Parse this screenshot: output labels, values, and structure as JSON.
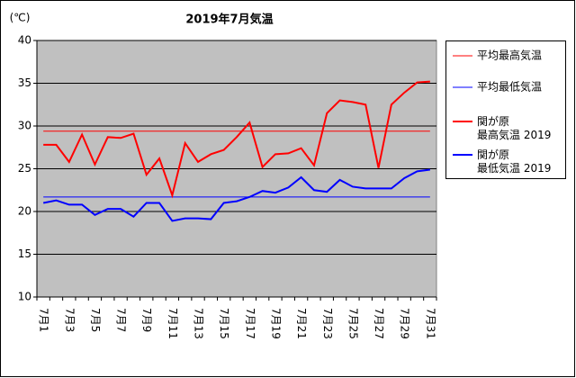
{
  "chart_data": {
    "type": "line",
    "title": "2019年7月気温",
    "y_unit": "(℃)",
    "categories": [
      "7月1",
      null,
      "7月3",
      null,
      "7月5",
      null,
      "7月7",
      null,
      "7月9",
      null,
      "7月11",
      null,
      "7月13",
      null,
      "7月15",
      null,
      "7月17",
      null,
      "7月19",
      null,
      "7月21",
      null,
      "7月23",
      null,
      "7月25",
      null,
      "7月27",
      null,
      "7月29",
      null,
      "7月31"
    ],
    "series": [
      {
        "name": "平均最高気温",
        "color": "#ff0000",
        "line_width": 1,
        "values": [
          29.4,
          29.4,
          29.4,
          29.4,
          29.4,
          29.4,
          29.4,
          29.4,
          29.4,
          29.4,
          29.4,
          29.4,
          29.4,
          29.4,
          29.4,
          29.4,
          29.4,
          29.4,
          29.4,
          29.4,
          29.4,
          29.4,
          29.4,
          29.4,
          29.4,
          29.4,
          29.4,
          29.4,
          29.4,
          29.4,
          29.4
        ]
      },
      {
        "name": "平均最低気温",
        "color": "#0000ff",
        "line_width": 1,
        "values": [
          21.7,
          21.7,
          21.7,
          21.7,
          21.7,
          21.7,
          21.7,
          21.7,
          21.7,
          21.7,
          21.7,
          21.7,
          21.7,
          21.7,
          21.7,
          21.7,
          21.7,
          21.7,
          21.7,
          21.7,
          21.7,
          21.7,
          21.7,
          21.7,
          21.7,
          21.7,
          21.7,
          21.7,
          21.7,
          21.7,
          21.7
        ]
      },
      {
        "name": "関が原\n最高気温 2019",
        "color": "#ff0000",
        "line_width": 2,
        "values": [
          27.8,
          27.8,
          25.8,
          29.0,
          25.5,
          28.7,
          28.6,
          29.1,
          24.3,
          26.2,
          21.9,
          28.0,
          25.8,
          26.7,
          27.2,
          28.7,
          30.4,
          25.2,
          26.7,
          26.8,
          27.4,
          25.4,
          31.5,
          33.0,
          32.8,
          32.5,
          25.1,
          32.5,
          33.9,
          35.1,
          35.2
        ]
      },
      {
        "name": "関が原\n最低気温 2019",
        "color": "#0000ff",
        "line_width": 2,
        "values": [
          21.0,
          21.3,
          20.8,
          20.8,
          19.6,
          20.3,
          20.3,
          19.4,
          21.0,
          21.0,
          18.9,
          19.2,
          19.2,
          19.1,
          21.0,
          21.2,
          21.7,
          22.4,
          22.2,
          22.8,
          24.0,
          22.5,
          22.3,
          23.7,
          22.9,
          22.7,
          22.7,
          22.7,
          23.9,
          24.7,
          24.9
        ]
      }
    ],
    "ylim": [
      10,
      40
    ],
    "yticks": [
      10,
      15,
      20,
      25,
      30,
      35,
      40
    ],
    "grid": true,
    "legend": "right",
    "plot_color": "#c0c0c0"
  }
}
